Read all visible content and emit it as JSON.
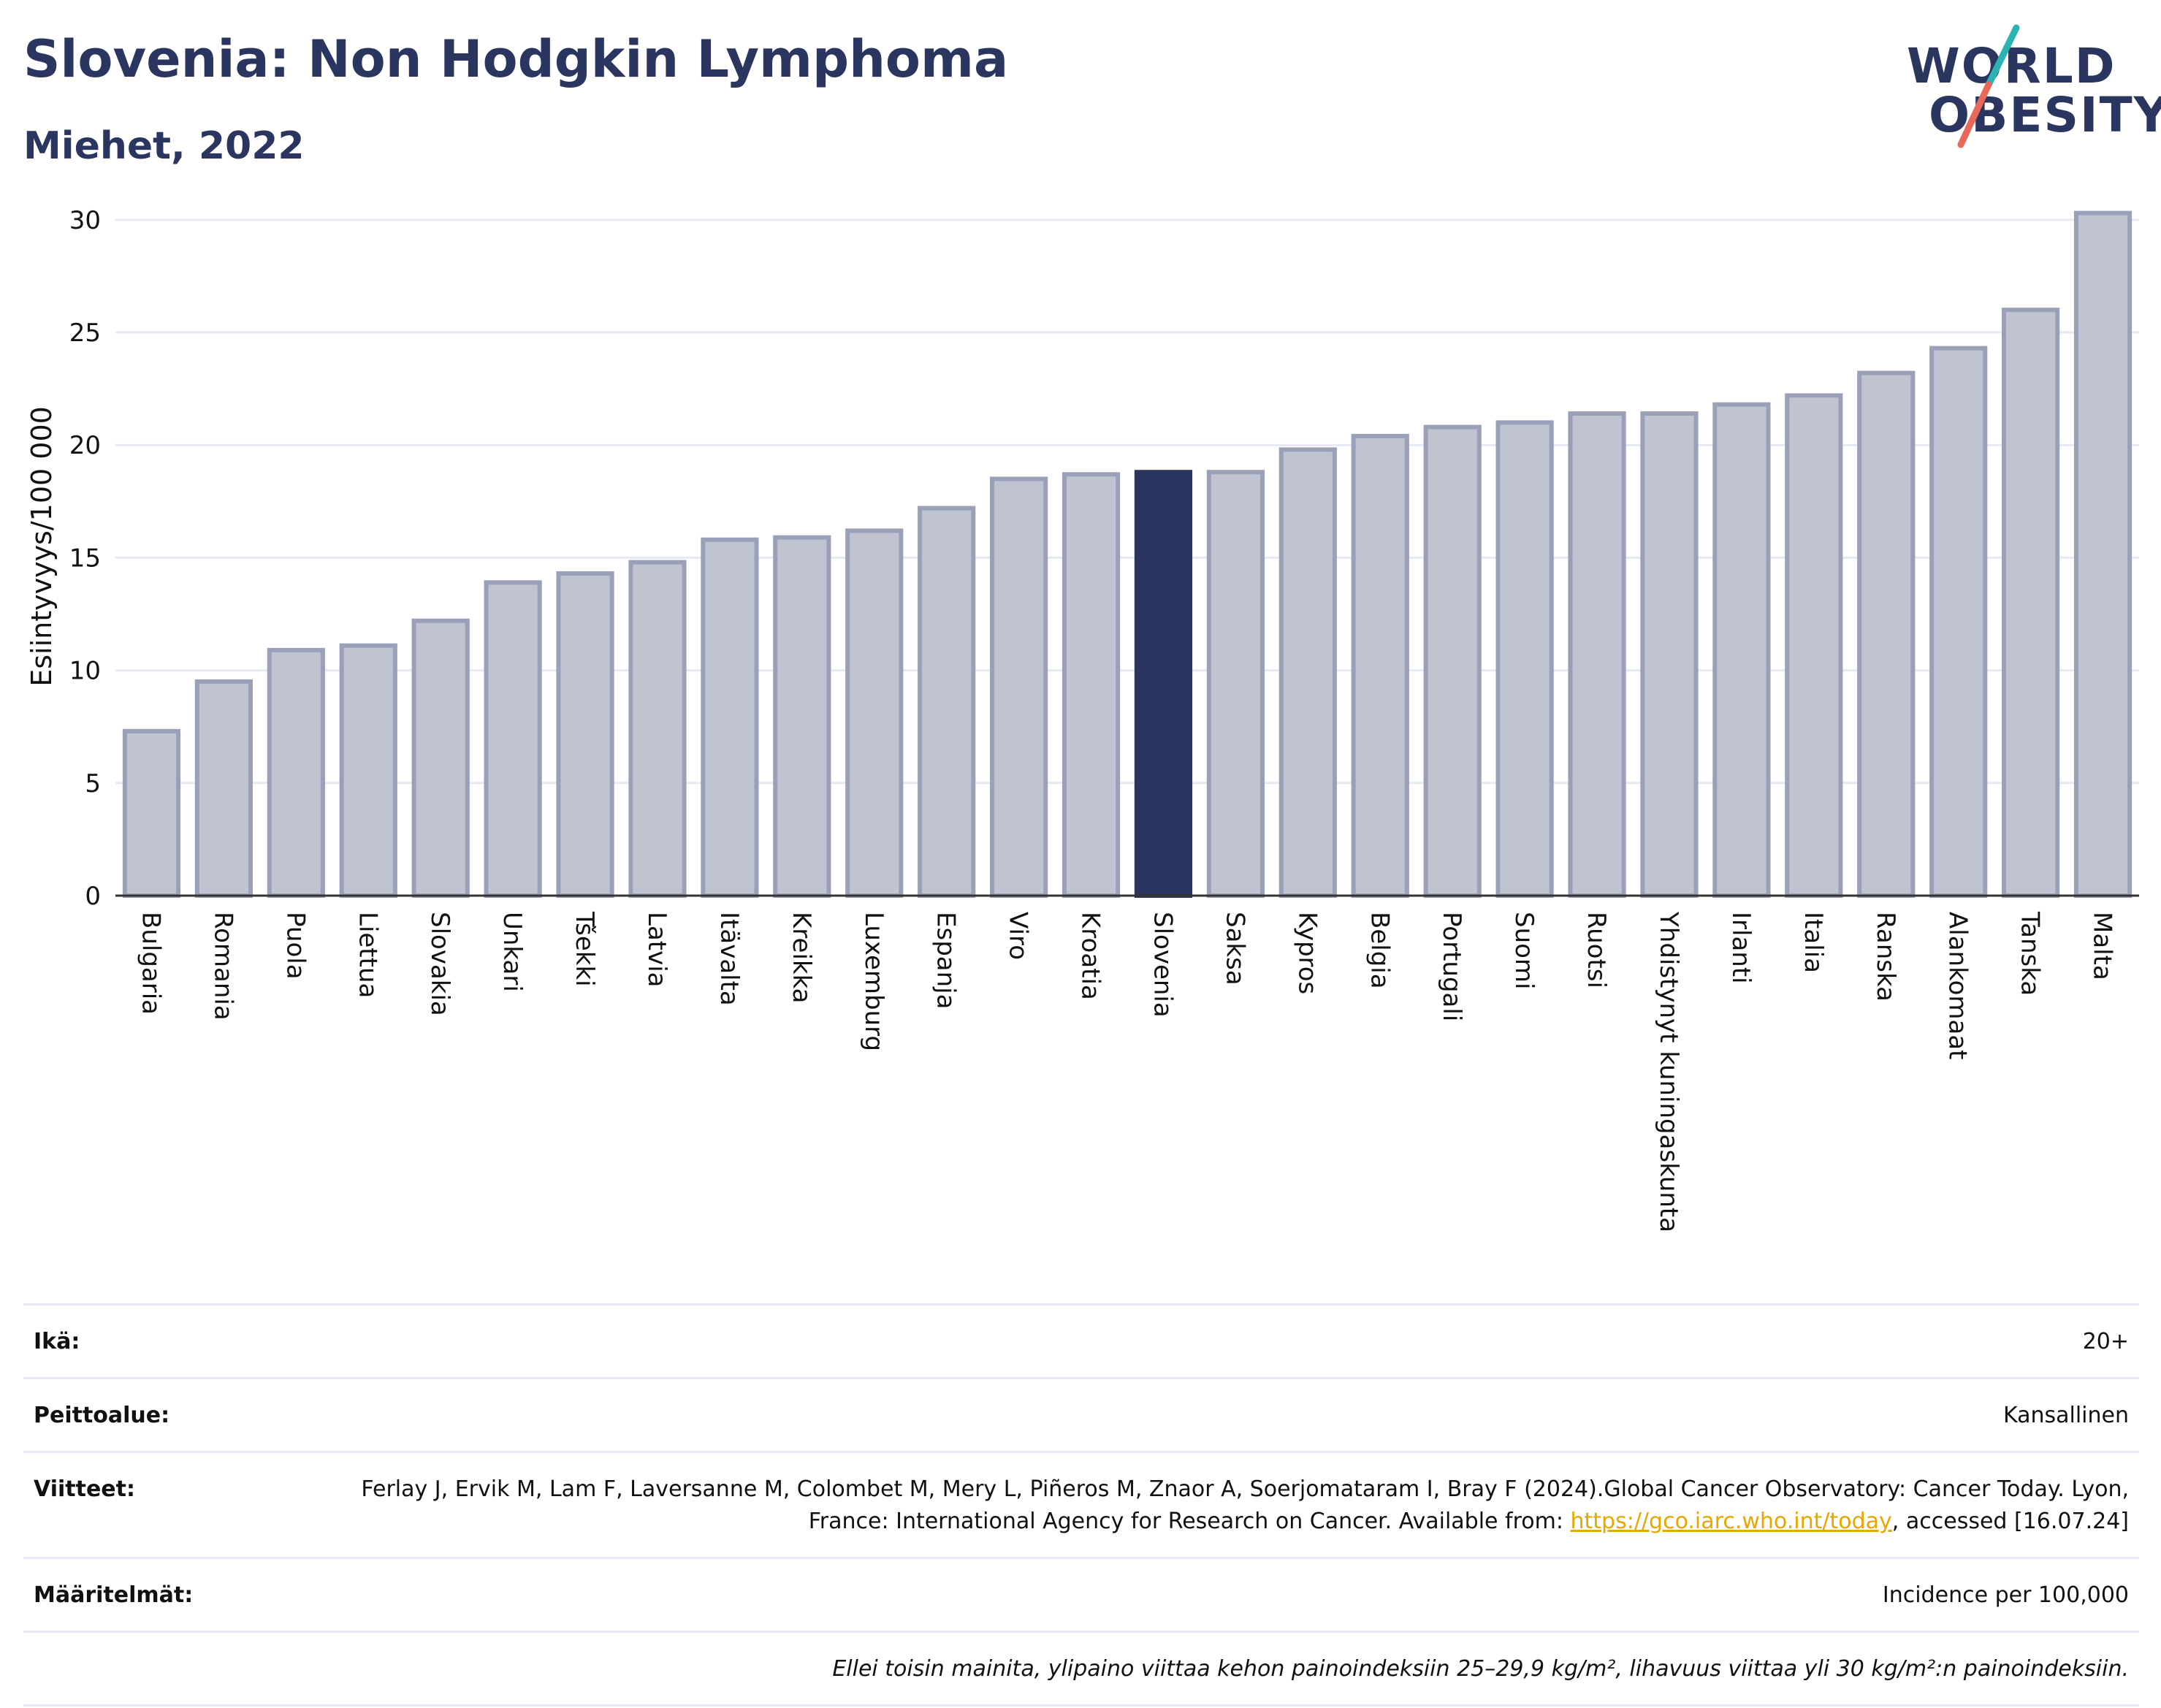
{
  "header": {
    "title": "Slovenia: Non Hodgkin Lymphoma",
    "subtitle": "Miehet, 2022"
  },
  "logo": {
    "line1": "WORLD",
    "line2": "OBESITY",
    "colors": {
      "text": "#2a3660",
      "slash_top": "#2bb3b1",
      "slash_bottom": "#e8685a"
    }
  },
  "colors": {
    "bar_default": "#c0c4d0",
    "bar_default_border": "#9aa0b8",
    "bar_highlight": "#2a3660",
    "grid": "#e6e9f2",
    "axis_text": "#111111"
  },
  "chart_data": {
    "type": "bar",
    "ylabel": "Esiintyvyys/100 000",
    "xlabel": "",
    "ylim": [
      0,
      31
    ],
    "yticks": [
      0,
      5,
      10,
      15,
      20,
      25,
      30
    ],
    "grid": true,
    "highlight": "Slovenia",
    "categories": [
      "Bulgaria",
      "Romania",
      "Puola",
      "Liettua",
      "Slovakia",
      "Unkari",
      "Tšekki",
      "Latvia",
      "Itävalta",
      "Kreikka",
      "Luxemburg",
      "Espanja",
      "Viro",
      "Kroatia",
      "Slovenia",
      "Saksa",
      "Kypros",
      "Belgia",
      "Portugali",
      "Suomi",
      "Ruotsi",
      "Yhdistynyt kuningaskunta",
      "Irlanti",
      "Italia",
      "Ranska",
      "Alankomaat",
      "Tanska",
      "Malta"
    ],
    "values": [
      7.3,
      9.5,
      10.9,
      11.1,
      12.2,
      13.9,
      14.3,
      14.8,
      15.8,
      15.9,
      16.2,
      17.2,
      18.5,
      18.7,
      18.8,
      18.8,
      19.8,
      20.4,
      20.8,
      21.0,
      21.4,
      21.4,
      21.8,
      22.2,
      23.2,
      24.3,
      26.0,
      30.3
    ]
  },
  "info": {
    "age_label": "Ikä:",
    "age_value": "20+",
    "coverage_label": "Peittoalue:",
    "coverage_value": "Kansallinen",
    "refs_label": "Viitteet:",
    "refs_text_before": "Ferlay J, Ervik M, Lam F, Laversanne M, Colombet M, Mery L, Piñeros M, Znaor A, Soerjomataram I, Bray F (2024).Global Cancer Observatory: Cancer Today. Lyon, France: International Agency for Research on Cancer. Available from: ",
    "refs_link": "https://gco.iarc.who.int/today",
    "refs_text_after": ", accessed [16.07.24]",
    "definitions_label": "Määritelmät:",
    "definitions_value": "Incidence per 100,000",
    "note": "Ellei toisin mainita, ylipaino viittaa kehon painoindeksiin 25–29,9 kg/m², lihavuus viittaa yli 30 kg/m²:n painoindeksiin."
  }
}
